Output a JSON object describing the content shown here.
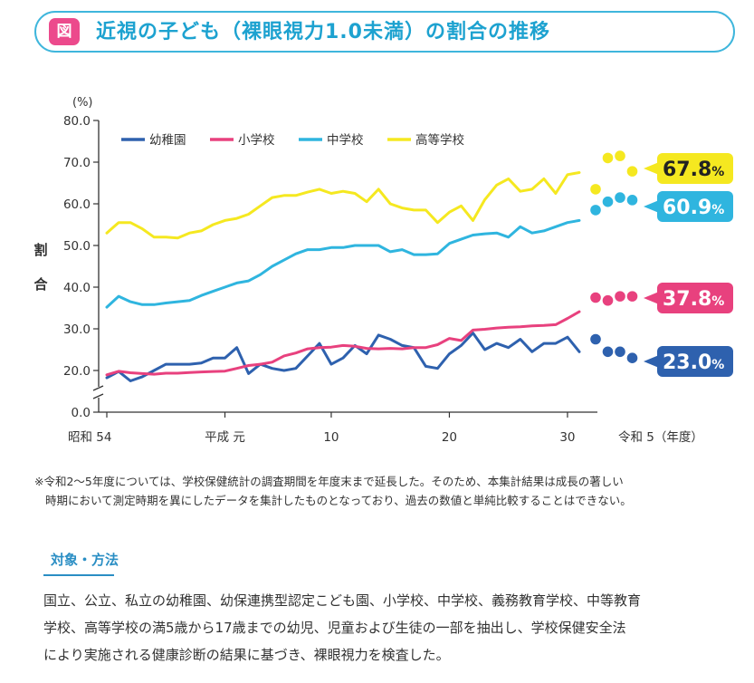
{
  "title": {
    "badge": "図",
    "text": "近視の子ども（裸眼視力1.0未満）の割合の推移"
  },
  "chart_data": {
    "type": "line",
    "yunit": "(%)",
    "ylabel": "割合",
    "ylim": [
      0,
      80
    ],
    "yticks": [
      "0.0",
      "20.0",
      "30.0",
      "40.0",
      "50.0",
      "60.0",
      "70.0",
      "80.0"
    ],
    "y_axis_break": "between 0 and 20",
    "xlabels": [
      {
        "x": 54,
        "text": "昭和 54"
      },
      {
        "x": 64,
        "text": "平成 元"
      },
      {
        "x": 73,
        "text": "10"
      },
      {
        "x": 83,
        "text": "20"
      },
      {
        "x": 93,
        "text": "30"
      },
      {
        "x": 98,
        "text": "令和 5（年度）"
      }
    ],
    "legend_position": "top-left",
    "grid": false,
    "series": [
      {
        "name": "幼稚園",
        "color": "#2e61ae",
        "x": [
          54,
          55,
          56,
          57,
          58,
          59,
          60,
          61,
          62,
          63,
          64,
          65,
          66,
          67,
          68,
          69,
          70,
          71,
          72,
          73,
          74,
          75,
          76,
          77,
          78,
          79,
          80,
          81,
          82,
          83,
          84,
          85,
          86,
          87,
          88,
          89,
          90,
          91,
          92,
          93,
          94
        ],
        "y": [
          16.5,
          19.5,
          15.0,
          17.0,
          20.0,
          21.5,
          21.5,
          21.5,
          21.8,
          23.0,
          23.0,
          25.5,
          18.5,
          21.5,
          20.5,
          20.0,
          20.5,
          23.5,
          26.5,
          21.5,
          23.0,
          26.0,
          24.0,
          28.5,
          27.5,
          26.0,
          25.5,
          21.0,
          20.5,
          24.0,
          26.0,
          29.0,
          25.0,
          26.5,
          25.5,
          27.5,
          24.5,
          26.5,
          26.5,
          28.0,
          24.5
        ],
        "dots_x": [
          95,
          96,
          97,
          98
        ],
        "dots_y": [
          27.5,
          24.5,
          24.5,
          23.0
        ],
        "final_label": "23.0%"
      },
      {
        "name": "小学校",
        "color": "#e8417e",
        "x": [
          54,
          55,
          56,
          57,
          58,
          59,
          60,
          61,
          62,
          63,
          64,
          65,
          66,
          67,
          68,
          69,
          70,
          71,
          72,
          73,
          74,
          75,
          76,
          77,
          78,
          79,
          80,
          81,
          82,
          83,
          84,
          85,
          86,
          87,
          88,
          89,
          90,
          91,
          92,
          93,
          94
        ],
        "y": [
          17.9,
          19.6,
          18.9,
          18.5,
          18.2,
          18.7,
          18.7,
          19.0,
          19.3,
          19.5,
          19.7,
          20.5,
          21.2,
          21.5,
          22.0,
          23.5,
          24.2,
          25.2,
          25.5,
          25.6,
          26.0,
          25.8,
          25.3,
          25.2,
          25.3,
          25.2,
          25.5,
          25.5,
          26.2,
          27.7,
          27.2,
          29.7,
          29.9,
          30.2,
          30.4,
          30.5,
          30.7,
          30.8,
          31.0,
          32.5,
          34.1
        ],
        "dots_x": [
          95,
          96,
          97,
          98
        ],
        "dots_y": [
          37.5,
          36.8,
          37.8,
          37.8
        ],
        "final_label": "37.8%"
      },
      {
        "name": "中学校",
        "color": "#2fb5df",
        "x": [
          54,
          55,
          56,
          57,
          58,
          59,
          60,
          61,
          62,
          63,
          64,
          65,
          66,
          67,
          68,
          69,
          70,
          71,
          72,
          73,
          74,
          75,
          76,
          77,
          78,
          79,
          80,
          81,
          82,
          83,
          84,
          85,
          86,
          87,
          88,
          89,
          90,
          91,
          92,
          93,
          94
        ],
        "y": [
          35.2,
          37.8,
          36.5,
          35.8,
          35.8,
          36.2,
          36.5,
          36.8,
          38.0,
          39.0,
          40.0,
          41.0,
          41.5,
          43.0,
          45.0,
          46.5,
          48.0,
          49.0,
          49.0,
          49.5,
          49.5,
          50.0,
          50.0,
          50.0,
          48.5,
          49.0,
          47.8,
          47.8,
          48.0,
          50.5,
          51.5,
          52.5,
          52.8,
          53.0,
          52.0,
          54.5,
          53.0,
          53.5,
          54.5,
          55.5,
          56.0
        ],
        "dots_x": [
          95,
          96,
          97,
          98
        ],
        "dots_y": [
          58.5,
          60.5,
          61.5,
          60.9
        ],
        "final_label": "60.9%"
      },
      {
        "name": "高等学校",
        "color": "#f5e820",
        "x": [
          54,
          55,
          56,
          57,
          58,
          59,
          60,
          61,
          62,
          63,
          64,
          65,
          66,
          67,
          68,
          69,
          70,
          71,
          72,
          73,
          74,
          75,
          76,
          77,
          78,
          79,
          80,
          81,
          82,
          83,
          84,
          85,
          86,
          87,
          88,
          89,
          90,
          91,
          92,
          93,
          94
        ],
        "y": [
          53.0,
          55.5,
          55.5,
          54.0,
          52.0,
          52.0,
          51.8,
          53.0,
          53.5,
          55.0,
          56.0,
          56.5,
          57.5,
          59.5,
          61.5,
          62.0,
          62.0,
          62.8,
          63.5,
          62.5,
          63.0,
          62.5,
          60.5,
          63.5,
          60.0,
          59.0,
          58.5,
          58.5,
          55.5,
          58.0,
          59.5,
          56.0,
          61.0,
          64.5,
          66.0,
          63.0,
          63.5,
          66.0,
          62.5,
          67.0,
          67.5
        ],
        "dots_x": [
          95,
          96,
          97,
          98
        ],
        "dots_y": [
          63.5,
          71.0,
          71.5,
          67.8
        ],
        "final_label": "67.8%"
      }
    ]
  },
  "note": {
    "line1": "※令和2〜5年度については、学校保健統計の調査期間を年度末まで延長した。そのため、本集計結果は成長の著しい",
    "line2": "時期において測定時期を異にしたデータを集計したものとなっており、過去の数値と単純比較することはできない。"
  },
  "section": {
    "heading": "対象・方法",
    "line1": "国立、公立、私立の幼稚園、幼保連携型認定こども園、小学校、中学校、義務教育学校、中等教育",
    "line2": "学校、高等学校の満5歳から17歳までの幼児、児童および生徒の一部を抽出し、学校保健安全法",
    "line3": "により実施される健康診断の結果に基づき、裸眼視力を検査した。"
  }
}
